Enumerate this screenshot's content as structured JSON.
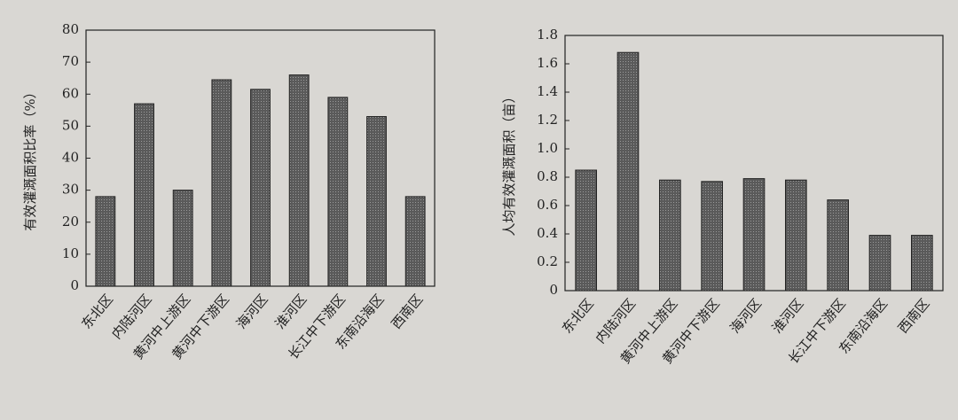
{
  "chart_data": [
    {
      "type": "bar",
      "ylabel": "有效灌溉面积比率（%）",
      "categories": [
        "东北区",
        "内陆河区",
        "黄河中上游区",
        "黄河中下游区",
        "海河区",
        "淮河区",
        "长江中下游区",
        "东南沿海区",
        "西南区"
      ],
      "values": [
        28,
        57,
        30,
        64.5,
        61.5,
        66,
        59,
        53,
        28
      ],
      "color": "#5a5a5a",
      "ylim": [
        0,
        80
      ],
      "yticks": [
        0,
        10,
        20,
        30,
        40,
        50,
        60,
        70,
        80
      ]
    },
    {
      "type": "bar",
      "ylabel": "人均有效灌溉面积（亩）",
      "categories": [
        "东北区",
        "内陆河区",
        "黄河中上游区",
        "黄河中下游区",
        "海河区",
        "淮河区",
        "长江中下游区",
        "东南沿海区",
        "西南区"
      ],
      "values": [
        0.85,
        1.68,
        0.78,
        0.77,
        0.79,
        0.78,
        0.64,
        0.39,
        0.39
      ],
      "color": "#5a5a5a",
      "ylim": [
        0,
        1.8
      ],
      "yticks": [
        0,
        0.2,
        0.4,
        0.6,
        0.8,
        {
          "value": 1,
          "label": "1.0"
        },
        1.2,
        1.4,
        1.6,
        1.8
      ]
    }
  ]
}
